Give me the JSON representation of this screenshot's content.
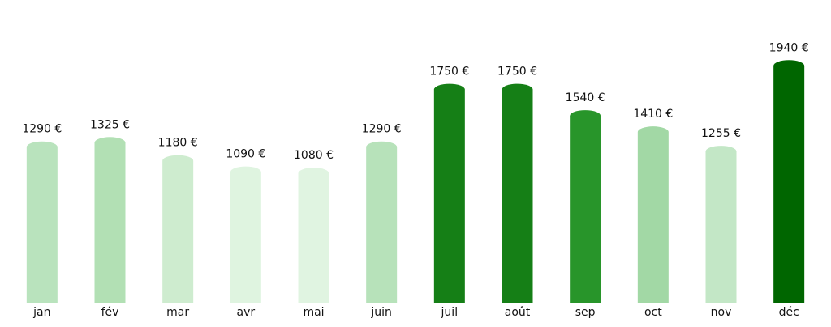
{
  "chart_data": {
    "type": "bar",
    "categories": [
      "jan",
      "fév",
      "mar",
      "avr",
      "mai",
      "juin",
      "juil",
      "août",
      "sep",
      "oct",
      "nov",
      "déc"
    ],
    "values": [
      1290,
      1325,
      1180,
      1090,
      1080,
      1290,
      1750,
      1750,
      1540,
      1410,
      1255,
      1940
    ],
    "value_labels": [
      "1290 €",
      "1325 €",
      "1180 €",
      "1090 €",
      "1080 €",
      "1290 €",
      "1750 €",
      "1750 €",
      "1540 €",
      "1410 €",
      "1255 €",
      "1940 €"
    ],
    "colors": [
      "#b9e3bd",
      "#b2e0b4",
      "#ceeccf",
      "#dff4e0",
      "#e0f4e1",
      "#b7e2ba",
      "#157f16",
      "#157f16",
      "#28952a",
      "#a2d8a5",
      "#c3e7c6",
      "#006600"
    ],
    "ylim": [
      0,
      2000
    ]
  }
}
